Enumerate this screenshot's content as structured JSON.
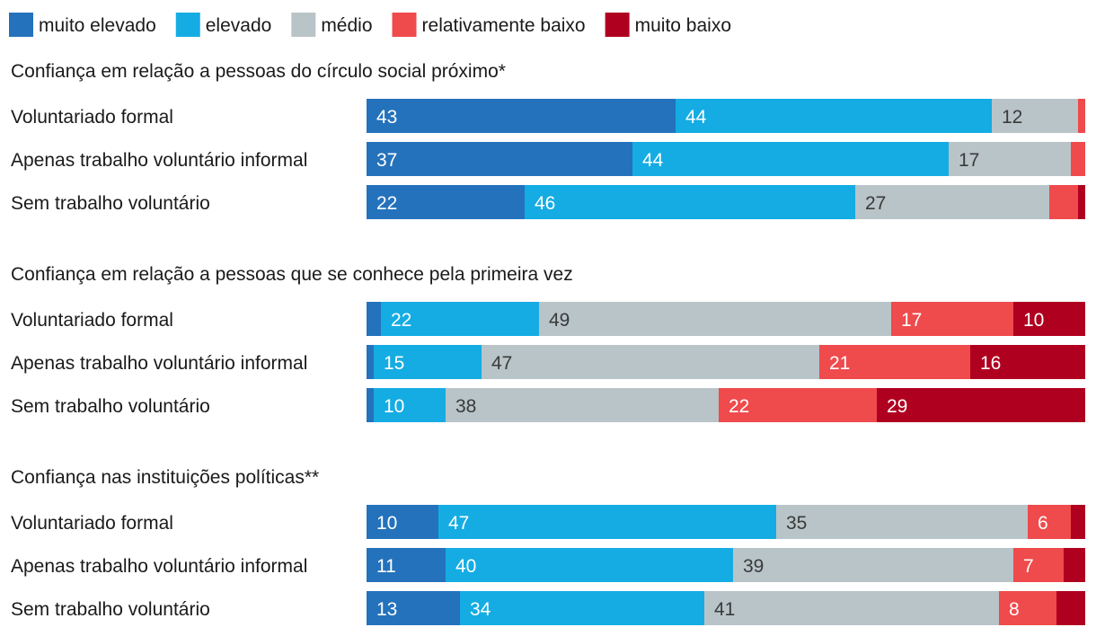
{
  "chart_data": {
    "type": "bar",
    "orientation": "horizontal",
    "stacked": true,
    "legend_position": "top-left",
    "xlim": [
      0,
      100
    ],
    "legend": [
      {
        "key": "muito_elevado",
        "label": "muito elevado",
        "color": "#2472bc"
      },
      {
        "key": "elevado",
        "label": "elevado",
        "color": "#14ace3"
      },
      {
        "key": "medio",
        "label": "médio",
        "color": "#b8c4c8"
      },
      {
        "key": "relativamente_baixo",
        "label": "relativamente baixo",
        "color": "#ef4a4c"
      },
      {
        "key": "muito_baixo",
        "label": "muito baixo",
        "color": "#b00020"
      }
    ],
    "panels": [
      {
        "title": "Confiança em relação a pessoas do círculo social próximo*",
        "rows": [
          {
            "label": "Voluntariado formal",
            "values": [
              43,
              44,
              12,
              1,
              0
            ],
            "labels": [
              "43",
              "44",
              "12",
              "",
              ""
            ]
          },
          {
            "label": "Apenas trabalho voluntário informal",
            "values": [
              37,
              44,
              17,
              2,
              0
            ],
            "labels": [
              "37",
              "44",
              "17",
              "",
              ""
            ]
          },
          {
            "label": "Sem trabalho voluntário",
            "values": [
              22,
              46,
              27,
              4,
              1
            ],
            "labels": [
              "22",
              "46",
              "27",
              "",
              ""
            ]
          }
        ]
      },
      {
        "title": "Confiança em relação a pessoas que se conhece pela primeira vez",
        "rows": [
          {
            "label": "Voluntariado formal",
            "values": [
              2,
              22,
              49,
              17,
              10
            ],
            "labels": [
              "",
              "22",
              "49",
              "17",
              "10"
            ]
          },
          {
            "label": "Apenas trabalho voluntário informal",
            "values": [
              1,
              15,
              47,
              21,
              16
            ],
            "labels": [
              "",
              "15",
              "47",
              "21",
              "16"
            ]
          },
          {
            "label": "Sem trabalho voluntário",
            "values": [
              1,
              10,
              38,
              22,
              29
            ],
            "labels": [
              "",
              "10",
              "38",
              "22",
              "29"
            ]
          }
        ]
      },
      {
        "title": "Confiança nas instituições políticas**",
        "rows": [
          {
            "label": "Voluntariado formal",
            "values": [
              10,
              47,
              35,
              6,
              2
            ],
            "labels": [
              "10",
              "47",
              "35",
              "6",
              ""
            ]
          },
          {
            "label": "Apenas trabalho voluntário informal",
            "values": [
              11,
              40,
              39,
              7,
              3
            ],
            "labels": [
              "11",
              "40",
              "39",
              "7",
              ""
            ]
          },
          {
            "label": "Sem trabalho voluntário",
            "values": [
              13,
              34,
              41,
              8,
              4
            ],
            "labels": [
              "13",
              "34",
              "41",
              "8",
              ""
            ]
          }
        ]
      }
    ]
  }
}
